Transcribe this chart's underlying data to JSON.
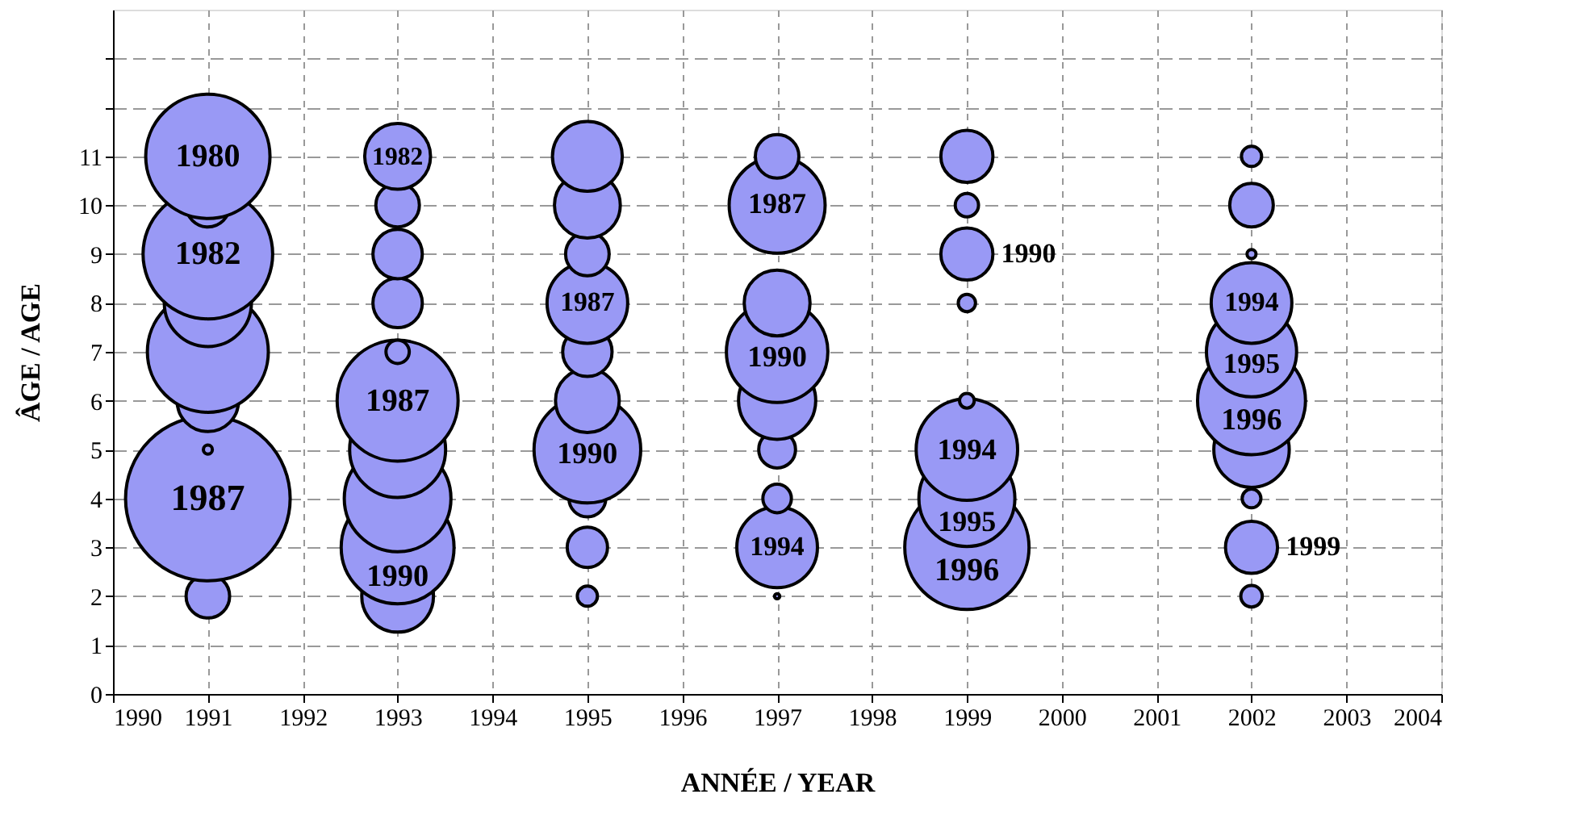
{
  "chart_data": {
    "type": "bubble",
    "xlabel": "ANNÉE / YEAR",
    "ylabel": "ÂGE / AGE",
    "xlim": [
      1990,
      2004
    ],
    "xticks": [
      1990,
      1991,
      1992,
      1993,
      1994,
      1995,
      1996,
      1997,
      1998,
      1999,
      2000,
      2001,
      2002,
      2003,
      2004
    ],
    "ylim": [
      0,
      14
    ],
    "yticks": [
      0,
      1,
      2,
      3,
      4,
      5,
      6,
      7,
      8,
      9,
      10,
      11,
      {
        "value": 12,
        "label": null
      },
      {
        "value": 13,
        "label": null
      }
    ],
    "grid": true,
    "series": [
      {
        "color": "#9999f5",
        "x": [
          1991,
          1991,
          1991,
          1991,
          1991,
          1991,
          1991,
          1991,
          1991,
          1993,
          1993,
          1993,
          1993,
          1993,
          1993,
          1993,
          1993,
          1993,
          1993,
          1995,
          1995,
          1995,
          1995,
          1995,
          1995,
          1995,
          1995,
          1995,
          1995,
          1997,
          1997,
          1997,
          1997,
          1997,
          1997,
          1997,
          1997,
          1997,
          1999,
          1999,
          1999,
          1999,
          1999,
          1999,
          1999,
          1999,
          2002,
          2002,
          2002,
          2002,
          2002,
          2002,
          2002,
          2002,
          2002,
          2002
        ],
        "values": [
          11,
          10,
          9,
          8,
          7,
          6,
          5,
          4,
          2,
          11,
          10,
          9,
          8,
          7,
          6,
          5,
          4,
          3,
          2,
          11,
          10,
          9,
          8,
          7,
          6,
          5,
          4,
          3,
          2,
          11,
          10,
          8,
          7,
          6,
          5,
          4,
          3,
          2,
          11,
          10,
          9,
          8,
          6,
          5,
          4,
          3,
          11,
          10,
          9,
          8,
          7,
          6,
          5,
          4,
          3,
          2
        ],
        "sizes": [
          0.57,
          0.07,
          0.62,
          0.28,
          0.54,
          0.14,
          0.003,
          1,
          0.07,
          0.16,
          0.07,
          0.09,
          0.09,
          0.02,
          0.54,
          0.34,
          0.42,
          0.47,
          0.19,
          0.18,
          0.16,
          0.07,
          0.24,
          0.09,
          0.15,
          0.42,
          0.05,
          0.06,
          0.015,
          0.07,
          0.34,
          0.16,
          0.38,
          0.22,
          0.05,
          0.03,
          0.24,
          0.001,
          0.1,
          0.02,
          0.1,
          0.011,
          0.008,
          0.38,
          0.34,
          0.57,
          0.015,
          0.07,
          0.003,
          0.24,
          0.3,
          0.43,
          0.21,
          0.013,
          0.1,
          0.017
        ]
      }
    ],
    "annotations": [
      {
        "text": "1980",
        "x": 1991,
        "y": 11
      },
      {
        "text": "1982",
        "x": 1991,
        "y": 9
      },
      {
        "text": "1987",
        "x": 1991,
        "y": 4
      },
      {
        "text": "1982",
        "x": 1993,
        "y": 11
      },
      {
        "text": "1987",
        "x": 1993,
        "y": 6
      },
      {
        "text": "1990",
        "x": 1993,
        "y": 3
      },
      {
        "text": "1987",
        "x": 1995,
        "y": 8
      },
      {
        "text": "1990",
        "x": 1995,
        "y": 5
      },
      {
        "text": "1987",
        "x": 1997,
        "y": 10
      },
      {
        "text": "1990",
        "x": 1997,
        "y": 7
      },
      {
        "text": "1994",
        "x": 1997,
        "y": 3
      },
      {
        "text": "1990",
        "x": 1999,
        "y": 9
      },
      {
        "text": "1994",
        "x": 1999,
        "y": 5
      },
      {
        "text": "1995",
        "x": 1999,
        "y": 4
      },
      {
        "text": "1996",
        "x": 1999,
        "y": 3
      },
      {
        "text": "1994",
        "x": 2002,
        "y": 8
      },
      {
        "text": "1995",
        "x": 2002,
        "y": 7
      },
      {
        "text": "1996",
        "x": 2002,
        "y": 6
      },
      {
        "text": "1999",
        "x": 2002,
        "y": 3
      }
    ]
  }
}
